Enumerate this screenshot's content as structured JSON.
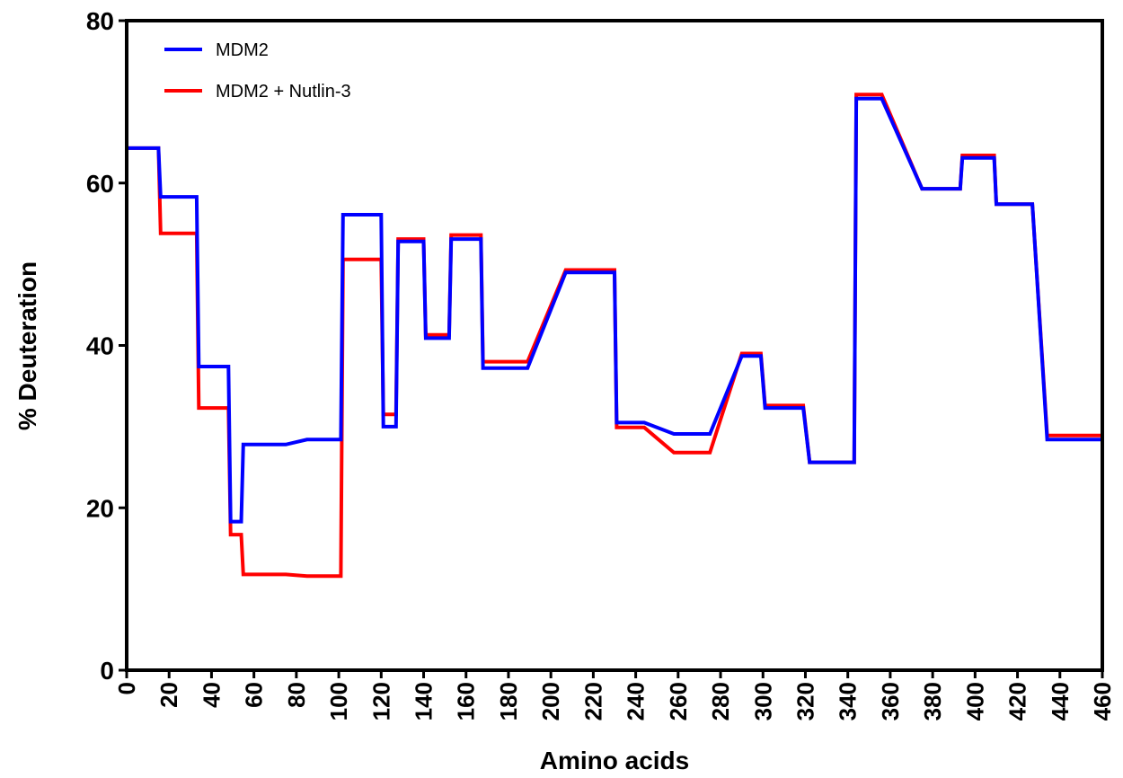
{
  "chart_data": {
    "type": "line",
    "title": "",
    "xlabel": "Amino acids",
    "ylabel": "% Deuteration",
    "xlim": [
      0,
      460
    ],
    "ylim": [
      0,
      80
    ],
    "x_ticks": [
      0,
      20,
      40,
      60,
      80,
      100,
      120,
      140,
      160,
      180,
      200,
      220,
      240,
      260,
      280,
      300,
      320,
      340,
      360,
      380,
      400,
      420,
      440,
      460
    ],
    "y_ticks": [
      0,
      20,
      40,
      60,
      80
    ],
    "grid": false,
    "legend_position": "top-left",
    "series": [
      {
        "name": "MDM2 + Nutlin-3",
        "color": "#ff0000",
        "points": [
          [
            0,
            64.3
          ],
          [
            15,
            64.3
          ],
          [
            16,
            53.8
          ],
          [
            33,
            53.8
          ],
          [
            34,
            32.3
          ],
          [
            48,
            32.3
          ],
          [
            49,
            16.7
          ],
          [
            54,
            16.7
          ],
          [
            55,
            11.8
          ],
          [
            75,
            11.8
          ],
          [
            85,
            11.6
          ],
          [
            101,
            11.6
          ],
          [
            102,
            50.6
          ],
          [
            120,
            50.6
          ],
          [
            121,
            31.5
          ],
          [
            127,
            31.5
          ],
          [
            128,
            53.1
          ],
          [
            140,
            53.1
          ],
          [
            141,
            41.3
          ],
          [
            152,
            41.3
          ],
          [
            153,
            53.6
          ],
          [
            167,
            53.6
          ],
          [
            168,
            38.0
          ],
          [
            189,
            38.0
          ],
          [
            207,
            49.3
          ],
          [
            230,
            49.3
          ],
          [
            231,
            29.9
          ],
          [
            244,
            29.9
          ],
          [
            258,
            26.8
          ],
          [
            275,
            26.8
          ],
          [
            290,
            39.0
          ],
          [
            299,
            39.0
          ],
          [
            301,
            32.6
          ],
          [
            319,
            32.6
          ],
          [
            322,
            25.6
          ],
          [
            343,
            25.6
          ],
          [
            344,
            70.9
          ],
          [
            356,
            70.9
          ],
          [
            375,
            59.3
          ],
          [
            393,
            59.3
          ],
          [
            394,
            63.4
          ],
          [
            409,
            63.4
          ],
          [
            410,
            57.4
          ],
          [
            427,
            57.4
          ],
          [
            434,
            28.9
          ],
          [
            460,
            28.9
          ]
        ]
      },
      {
        "name": "MDM2",
        "color": "#0000ff",
        "points": [
          [
            0,
            64.3
          ],
          [
            15,
            64.3
          ],
          [
            16,
            58.3
          ],
          [
            33,
            58.3
          ],
          [
            34,
            37.4
          ],
          [
            48,
            37.4
          ],
          [
            49,
            18.3
          ],
          [
            54,
            18.3
          ],
          [
            55,
            27.8
          ],
          [
            75,
            27.8
          ],
          [
            85,
            28.4
          ],
          [
            101,
            28.4
          ],
          [
            102,
            56.1
          ],
          [
            120,
            56.1
          ],
          [
            121,
            30.0
          ],
          [
            127,
            30.0
          ],
          [
            128,
            52.8
          ],
          [
            140,
            52.8
          ],
          [
            141,
            40.9
          ],
          [
            152,
            40.9
          ],
          [
            153,
            53.1
          ],
          [
            167,
            53.1
          ],
          [
            168,
            37.2
          ],
          [
            189,
            37.2
          ],
          [
            207,
            49.0
          ],
          [
            230,
            49.0
          ],
          [
            231,
            30.5
          ],
          [
            244,
            30.5
          ],
          [
            258,
            29.1
          ],
          [
            275,
            29.1
          ],
          [
            290,
            38.7
          ],
          [
            299,
            38.7
          ],
          [
            301,
            32.3
          ],
          [
            319,
            32.3
          ],
          [
            322,
            25.6
          ],
          [
            343,
            25.6
          ],
          [
            344,
            70.4
          ],
          [
            356,
            70.4
          ],
          [
            375,
            59.3
          ],
          [
            393,
            59.3
          ],
          [
            394,
            63.1
          ],
          [
            409,
            63.1
          ],
          [
            410,
            57.4
          ],
          [
            427,
            57.4
          ],
          [
            434,
            28.4
          ],
          [
            460,
            28.4
          ]
        ]
      }
    ]
  },
  "legend": [
    {
      "label": "MDM2",
      "color": "#0000ff"
    },
    {
      "label": "MDM2 + Nutlin-3",
      "color": "#ff0000"
    }
  ]
}
